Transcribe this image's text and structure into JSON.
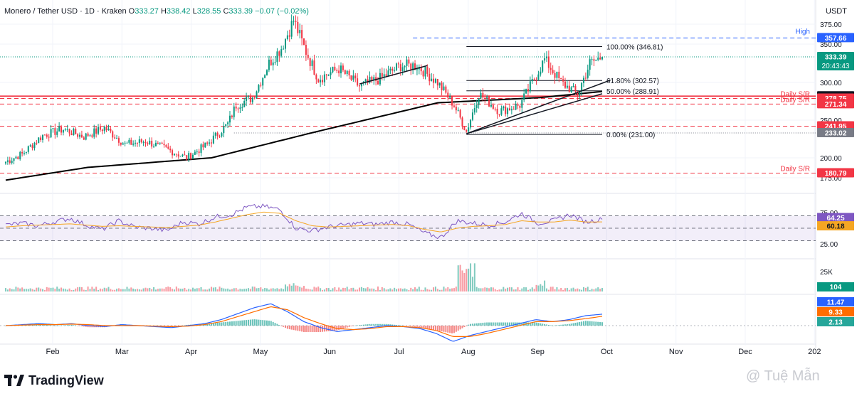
{
  "header": {
    "symbol": "Monero / Tether USD · 1D · Kraken",
    "o_label": "O",
    "o": "333.27",
    "h_label": "H",
    "h": "338.42",
    "l_label": "L",
    "l": "328.55",
    "c_label": "C",
    "c": "333.39",
    "change": "−0.07 (−0.02%)"
  },
  "currency": "USDT",
  "footer": {
    "brand": "TradingView",
    "watermark": "@ Tuệ Mẫn"
  },
  "colors": {
    "up": "#089981",
    "down": "#f23645",
    "fib": "#131722",
    "rsi": "#7e57c2",
    "rsi_ma": "#f5a623",
    "macd": "#2962ff",
    "signal": "#ff6d00",
    "sma": "#000000"
  },
  "chart_data": [
    {
      "type": "candlestick",
      "panel": "price",
      "x_labels": [
        "Feb",
        "Mar",
        "Apr",
        "May",
        "Jun",
        "Jul",
        "Aug",
        "Sep",
        "Oct",
        "Nov",
        "Dec",
        "202"
      ],
      "y_ticks": [
        "375.00",
        "350.00",
        "300.00",
        "250.00",
        "200.00",
        "175.00"
      ],
      "ylim": [
        160,
        390
      ],
      "price_levels": [
        {
          "label": "High",
          "value": "357.66",
          "style": "dashed-blue"
        },
        {
          "label": "",
          "value": "333.39",
          "style": "last-price",
          "countdown": "20:43:43"
        },
        {
          "label": "",
          "value": "281.89",
          "style": "solid-red"
        },
        {
          "label": "Daily S/R",
          "value": "278.75",
          "style": "dashed-red"
        },
        {
          "label": "Daily S/R",
          "value": "271.34",
          "style": "dashed-red"
        },
        {
          "label": "",
          "value": "241.95",
          "style": "dashed-red"
        },
        {
          "label": "",
          "value": "233.02",
          "style": "dotted-gray"
        },
        {
          "label": "Daily S/R",
          "value": "180.79",
          "style": "dashed-red"
        }
      ],
      "fibonacci": [
        {
          "label": "100.00% (346.81)",
          "value": 346.81
        },
        {
          "label": "61.80% (302.57)",
          "value": 302.57
        },
        {
          "label": "50.00% (288.91)",
          "value": 288.91
        },
        {
          "label": "0.00% (231.00)",
          "value": 231.0
        }
      ],
      "anchors": [
        {
          "t": 0,
          "v": 195
        },
        {
          "t": 8,
          "v": 205
        },
        {
          "t": 18,
          "v": 230
        },
        {
          "t": 28,
          "v": 238
        },
        {
          "t": 38,
          "v": 228
        },
        {
          "t": 48,
          "v": 240
        },
        {
          "t": 58,
          "v": 218
        },
        {
          "t": 68,
          "v": 222
        },
        {
          "t": 78,
          "v": 212
        },
        {
          "t": 88,
          "v": 200
        },
        {
          "t": 98,
          "v": 218
        },
        {
          "t": 108,
          "v": 245
        },
        {
          "t": 112,
          "v": 270
        },
        {
          "t": 120,
          "v": 280
        },
        {
          "t": 128,
          "v": 325
        },
        {
          "t": 134,
          "v": 345
        },
        {
          "t": 140,
          "v": 380
        },
        {
          "t": 146,
          "v": 340
        },
        {
          "t": 152,
          "v": 305
        },
        {
          "t": 162,
          "v": 318
        },
        {
          "t": 172,
          "v": 295
        },
        {
          "t": 182,
          "v": 305
        },
        {
          "t": 192,
          "v": 322
        },
        {
          "t": 200,
          "v": 322
        },
        {
          "t": 210,
          "v": 300
        },
        {
          "t": 218,
          "v": 270
        },
        {
          "t": 224,
          "v": 235
        },
        {
          "t": 230,
          "v": 285
        },
        {
          "t": 240,
          "v": 262
        },
        {
          "t": 250,
          "v": 270
        },
        {
          "t": 256,
          "v": 300
        },
        {
          "t": 262,
          "v": 330
        },
        {
          "t": 270,
          "v": 300
        },
        {
          "t": 278,
          "v": 285
        },
        {
          "t": 284,
          "v": 325
        },
        {
          "t": 290,
          "v": 333.39
        }
      ],
      "sma": [
        {
          "t": 0,
          "v": 172
        },
        {
          "t": 40,
          "v": 188
        },
        {
          "t": 100,
          "v": 200
        },
        {
          "t": 150,
          "v": 234
        },
        {
          "t": 210,
          "v": 273
        },
        {
          "t": 260,
          "v": 280
        },
        {
          "t": 290,
          "v": 288
        }
      ]
    },
    {
      "type": "line",
      "panel": "rsi",
      "y_ticks": [
        "75.00",
        "25.00"
      ],
      "ylim": [
        10,
        90
      ],
      "band": [
        30,
        70
      ],
      "series": [
        {
          "values": [
            55,
            58,
            54,
            60,
            66,
            55,
            48,
            62,
            52,
            50,
            46,
            60,
            57,
            68,
            72,
            84,
            85,
            80,
            50,
            46,
            52,
            55,
            58,
            56,
            60,
            56,
            42,
            35,
            62,
            58,
            55,
            60,
            74,
            58,
            62,
            72,
            60,
            64.25
          ]
        },
        {
          "values": [
            52,
            54,
            55,
            56,
            57,
            55,
            53,
            54,
            53,
            52,
            51,
            53,
            55,
            60,
            66,
            72,
            76,
            74,
            62,
            54,
            52,
            53,
            54,
            55,
            56,
            54,
            48,
            44,
            50,
            53,
            54,
            56,
            62,
            60,
            60,
            63,
            60,
            60.18
          ]
        }
      ],
      "last_values": [
        "64.25",
        "60.18"
      ]
    },
    {
      "type": "bar",
      "panel": "volume",
      "y_ticks": [
        "25K"
      ],
      "last_value": "104"
    },
    {
      "type": "line",
      "panel": "macd",
      "series": [
        {
          "values": [
            0,
            1,
            2,
            1,
            2,
            0,
            -1,
            1,
            0,
            -1,
            -2,
            0,
            2,
            6,
            12,
            18,
            22,
            14,
            4,
            -2,
            -6,
            -4,
            -2,
            0,
            -1,
            -3,
            -8,
            -16,
            -10,
            -6,
            -2,
            2,
            6,
            4,
            6,
            10,
            11.47
          ]
        },
        {
          "values": [
            0,
            0.5,
            1,
            1,
            1.5,
            1,
            0,
            0,
            0,
            -0.5,
            -1,
            -0.5,
            1,
            4,
            9,
            14,
            19,
            16,
            8,
            2,
            -3,
            -4,
            -3,
            -1,
            -1,
            -2,
            -5,
            -11,
            -11,
            -8,
            -4,
            0,
            4,
            4,
            5,
            7,
            9.33
          ]
        }
      ],
      "last_values": [
        "11.47",
        "9.33",
        "2.13"
      ]
    }
  ]
}
